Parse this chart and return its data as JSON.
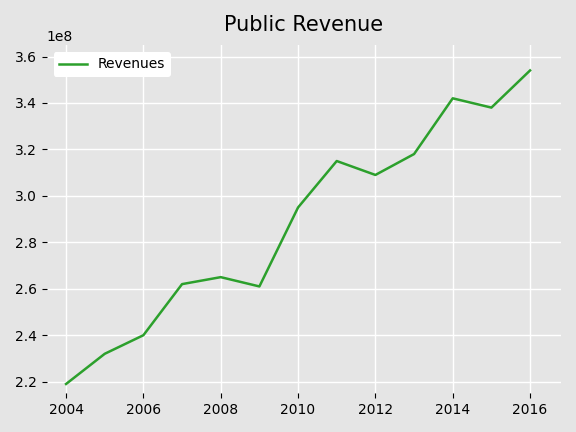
{
  "title": "Public Revenue",
  "legend_label": "Revenues",
  "line_color": "#2ca02c",
  "background_color": "#e5e5e5",
  "years": [
    2004,
    2005,
    2006,
    2007,
    2008,
    2009,
    2010,
    2011,
    2012,
    2013,
    2014,
    2015,
    2016
  ],
  "revenues": [
    219000000,
    232000000,
    240000000,
    262000000,
    265000000,
    261000000,
    295000000,
    315000000,
    309000000,
    318000000,
    342000000,
    338000000,
    354000000
  ],
  "ylim": [
    215000000,
    365000000
  ],
  "xlim": [
    2003.5,
    2016.8
  ],
  "yticks": [
    220000000,
    240000000,
    260000000,
    280000000,
    300000000,
    320000000,
    340000000,
    360000000
  ],
  "xticks": [
    2004,
    2006,
    2008,
    2010,
    2012,
    2014,
    2016
  ],
  "grid_color": "#ffffff",
  "title_fontsize": 15,
  "tick_fontsize": 10,
  "legend_fontsize": 10,
  "line_width": 1.8
}
